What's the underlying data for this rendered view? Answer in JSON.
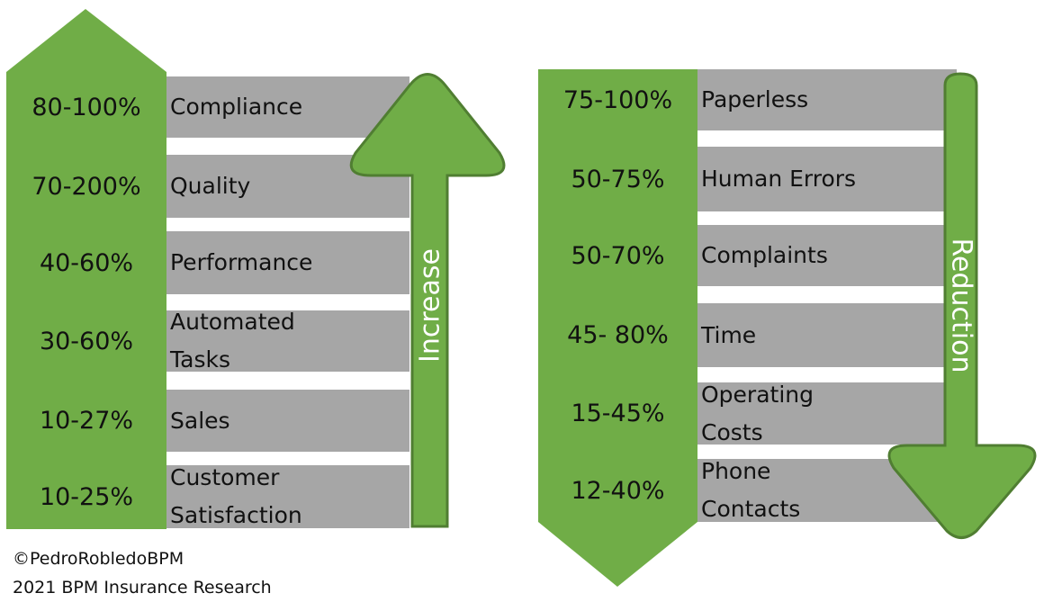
{
  "left": {
    "direction": "Increase",
    "items": [
      {
        "range": "80-100%",
        "label": "Compliance"
      },
      {
        "range": "70-200%",
        "label": "Quality"
      },
      {
        "range": "40-60%",
        "label": "Performance"
      },
      {
        "range": "30-60%",
        "label": "Automated\nTasks"
      },
      {
        "range": "10-27%",
        "label": "Sales"
      },
      {
        "range": "10-25%",
        "label": "Customer\nSatisfaction"
      }
    ]
  },
  "right": {
    "direction": "Reduction",
    "items": [
      {
        "range": "75-100%",
        "label": "Paperless"
      },
      {
        "range": "50-75%",
        "label": "Human Errors"
      },
      {
        "range": "50-70%",
        "label": "Complaints"
      },
      {
        "range": "45- 80%",
        "label": "Time"
      },
      {
        "range": "15-45%",
        "label": "Operating\nCosts"
      },
      {
        "range": "12-40%",
        "label": "Phone\nContacts"
      }
    ]
  },
  "footer": [
    "©PedroRobledoBPM",
    "2021 BPM Insurance Research"
  ]
}
